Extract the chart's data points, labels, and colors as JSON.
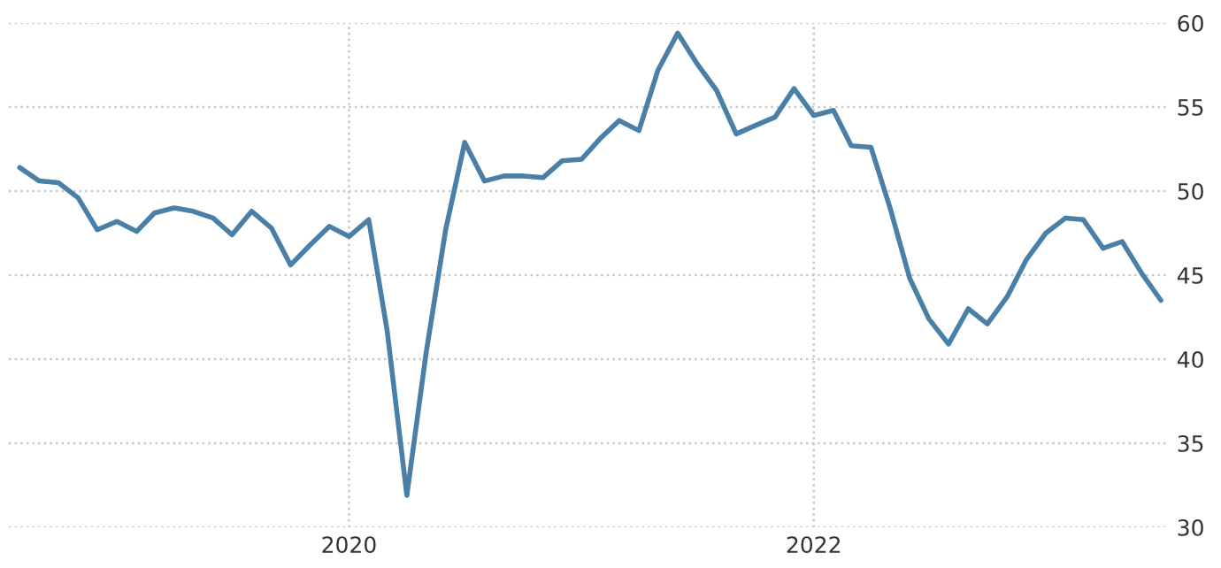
{
  "chart_data": {
    "type": "line",
    "x": [
      "2018-08",
      "2018-09",
      "2018-10",
      "2018-11",
      "2018-12",
      "2019-01",
      "2019-02",
      "2019-03",
      "2019-04",
      "2019-05",
      "2019-06",
      "2019-07",
      "2019-08",
      "2019-09",
      "2019-10",
      "2019-11",
      "2019-12",
      "2020-01",
      "2020-02",
      "2020-03",
      "2020-04",
      "2020-05",
      "2020-06",
      "2020-07",
      "2020-08",
      "2020-09",
      "2020-10",
      "2020-11",
      "2020-12",
      "2021-01",
      "2021-02",
      "2021-03",
      "2021-04",
      "2021-05",
      "2021-06",
      "2021-07",
      "2021-08",
      "2021-09",
      "2021-10",
      "2021-11",
      "2021-12",
      "2022-01",
      "2022-02",
      "2022-03",
      "2022-04",
      "2022-05",
      "2022-06",
      "2022-07",
      "2022-08",
      "2022-09",
      "2022-10",
      "2022-11",
      "2022-12",
      "2023-01",
      "2023-02",
      "2023-03",
      "2023-04",
      "2023-05",
      "2023-06",
      "2023-07"
    ],
    "series": [
      {
        "color": "#4a7fa8",
        "values": [
          51.4,
          50.6,
          50.5,
          49.6,
          47.7,
          48.2,
          47.6,
          48.7,
          49.0,
          48.8,
          48.4,
          47.4,
          48.8,
          47.8,
          45.6,
          46.8,
          47.9,
          47.3,
          48.3,
          41.7,
          31.9,
          40.3,
          47.7,
          52.9,
          50.6,
          50.9,
          50.9,
          50.8,
          51.8,
          51.9,
          53.2,
          54.2,
          53.6,
          57.2,
          59.4,
          57.6,
          56.0,
          53.4,
          53.9,
          54.4,
          56.1,
          54.5,
          54.8,
          52.7,
          52.6,
          49.0,
          44.8,
          42.4,
          40.9,
          43.0,
          42.1,
          43.7,
          45.9,
          47.5,
          48.4,
          48.3,
          46.6,
          47.0,
          45.1,
          43.5
        ]
      }
    ],
    "xlim": [
      "2018-07-15",
      "2023-07-12"
    ],
    "xticks": [
      {
        "value": "2020-01-01",
        "label": "2020"
      },
      {
        "value": "2022-01-01",
        "label": "2022"
      }
    ],
    "ylim": [
      30,
      60
    ],
    "yticks": [
      30,
      35,
      40,
      45,
      50,
      55,
      60
    ],
    "grid": true,
    "legend": false,
    "marker": "none",
    "line_style": "solid"
  }
}
